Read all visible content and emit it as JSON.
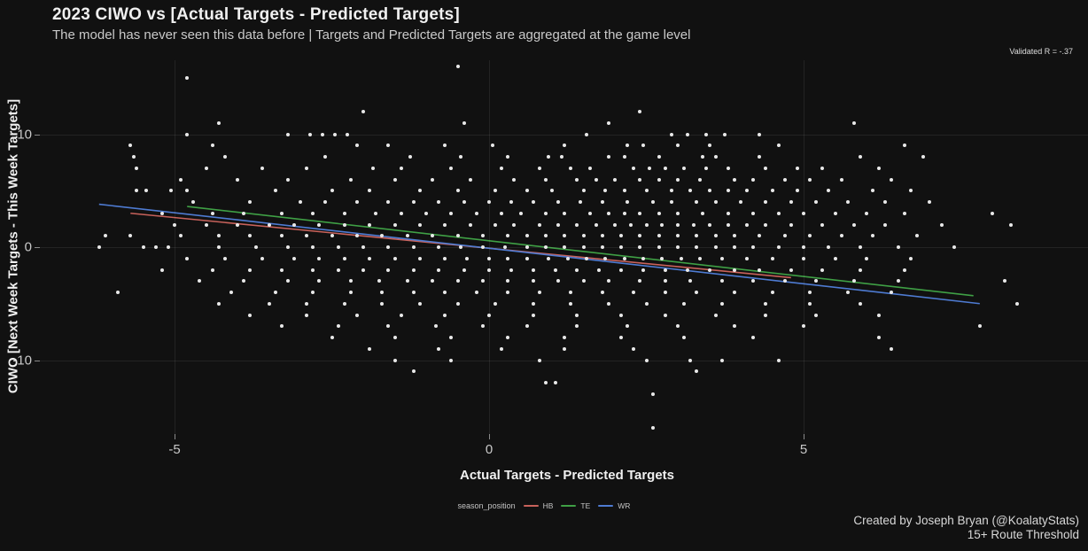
{
  "chart_data": {
    "type": "scatter",
    "title": "2023 CIWO vs [Actual Targets - Predicted Targets]",
    "subtitle": "The model has never seen this data before | Targets and Predicted Targets are aggregated at the game level",
    "annotation": "Validated R = -.37",
    "xlabel": "Actual Targets - Predicted Targets",
    "ylabel": "CIWO [Next Week Targets - This Week Targets]",
    "xticks": [
      -5,
      0,
      5
    ],
    "yticks": [
      10,
      0,
      -10
    ],
    "xlim": [
      -7.1,
      9.5
    ],
    "ylim": [
      -16.6,
      16.6
    ],
    "grid": true,
    "legend_position": "bottom",
    "background_color": "#111111",
    "point_color": "#e9e9e9",
    "rows": [
      {
        "y": 16,
        "x": [
          -0.5
        ]
      },
      {
        "y": 15,
        "x": [
          -4.8
        ]
      },
      {
        "y": 12,
        "x": [
          -2.0,
          2.4
        ]
      },
      {
        "y": 11,
        "x": [
          -4.3,
          -0.4,
          1.9,
          5.8
        ]
      },
      {
        "y": 10,
        "x": [
          -4.8,
          -3.2,
          -2.85,
          -2.65,
          -2.45,
          -2.25,
          1.55,
          2.9,
          3.15,
          3.45,
          3.75,
          4.3
        ]
      },
      {
        "y": 9,
        "x": [
          -5.7,
          -4.4,
          -2.1,
          -1.6,
          -0.7,
          0.05,
          1.2,
          2.2,
          2.45,
          3.0,
          3.5,
          4.6,
          6.6
        ]
      },
      {
        "y": 8,
        "x": [
          -5.65,
          -4.2,
          -2.6,
          -1.25,
          -0.45,
          0.3,
          0.95,
          1.15,
          1.9,
          2.15,
          2.7,
          3.4,
          3.6,
          4.3,
          5.9,
          6.9
        ]
      },
      {
        "y": 7,
        "x": [
          -5.6,
          -4.5,
          -3.6,
          -2.9,
          -1.85,
          -1.4,
          -0.6,
          0.2,
          0.8,
          1.3,
          1.6,
          2.3,
          2.55,
          2.8,
          3.1,
          3.45,
          3.8,
          4.4,
          4.9,
          5.3,
          6.2
        ]
      },
      {
        "y": 6,
        "x": [
          -4.9,
          -4.0,
          -3.2,
          -2.2,
          -1.5,
          -0.9,
          -0.3,
          0.4,
          0.9,
          1.4,
          1.7,
          2.0,
          2.4,
          2.7,
          3.0,
          3.35,
          3.9,
          4.2,
          4.7,
          5.1,
          5.6,
          6.4
        ]
      },
      {
        "y": 5,
        "x": [
          -5.6,
          -5.45,
          -5.05,
          -4.8,
          -3.4,
          -2.5,
          -1.9,
          -1.1,
          -0.5,
          0.1,
          0.6,
          1.0,
          1.5,
          1.85,
          2.15,
          2.5,
          2.9,
          3.2,
          3.5,
          3.8,
          4.1,
          4.5,
          4.9,
          5.4,
          6.1,
          6.7
        ]
      },
      {
        "y": 4,
        "x": [
          -4.7,
          -3.8,
          -3.0,
          -2.6,
          -2.1,
          -1.6,
          -1.2,
          -0.8,
          -0.4,
          0.0,
          0.35,
          0.7,
          1.1,
          1.45,
          1.8,
          2.2,
          2.6,
          2.9,
          3.3,
          3.6,
          4.0,
          4.4,
          4.8,
          5.2,
          5.7,
          6.3,
          7.0
        ]
      },
      {
        "y": 3,
        "x": [
          -5.2,
          -4.4,
          -3.9,
          -3.3,
          -2.8,
          -2.3,
          -1.8,
          -1.4,
          -1.0,
          -0.6,
          -0.2,
          0.2,
          0.5,
          0.9,
          1.2,
          1.6,
          1.9,
          2.15,
          2.4,
          2.7,
          3.0,
          3.4,
          3.8,
          4.2,
          4.6,
          5.0,
          5.5,
          6.0,
          6.6,
          8.0
        ]
      },
      {
        "y": 2,
        "x": [
          -5.0,
          -4.5,
          -4.0,
          -3.5,
          -3.1,
          -2.7,
          -2.3,
          -1.9,
          -1.5,
          -1.1,
          -0.7,
          -0.3,
          0.1,
          0.4,
          0.8,
          1.1,
          1.4,
          1.7,
          2.0,
          2.25,
          2.5,
          2.75,
          3.0,
          3.25,
          3.5,
          3.8,
          4.1,
          4.4,
          4.8,
          5.3,
          5.8,
          6.3,
          7.2,
          8.3
        ]
      },
      {
        "y": 1,
        "x": [
          -6.1,
          -5.7,
          -4.9,
          -4.3,
          -3.8,
          -3.3,
          -2.9,
          -2.5,
          -2.1,
          -1.7,
          -1.3,
          -0.9,
          -0.5,
          -0.1,
          0.3,
          0.6,
          0.9,
          1.2,
          1.5,
          1.8,
          2.1,
          2.4,
          2.7,
          3.0,
          3.3,
          3.6,
          3.9,
          4.3,
          4.7,
          5.1,
          5.6,
          6.1,
          6.8
        ]
      },
      {
        "y": 0,
        "x": [
          -6.2,
          -5.5,
          -5.3,
          -5.1,
          -4.3,
          -3.7,
          -3.2,
          -2.8,
          -2.4,
          -2.0,
          -1.6,
          -1.2,
          -0.8,
          -0.45,
          -0.1,
          0.25,
          0.6,
          0.9,
          1.2,
          1.5,
          1.8,
          2.1,
          2.4,
          2.7,
          3.0,
          3.3,
          3.6,
          3.9,
          4.2,
          4.6,
          5.0,
          5.4,
          5.9,
          6.5,
          7.4
        ]
      },
      {
        "y": -1,
        "x": [
          -4.8,
          -4.2,
          -3.6,
          -3.1,
          -2.7,
          -2.3,
          -1.9,
          -1.5,
          -1.1,
          -0.7,
          -0.35,
          0.0,
          0.3,
          0.6,
          0.95,
          1.25,
          1.55,
          1.85,
          2.15,
          2.45,
          2.75,
          3.05,
          3.35,
          3.7,
          4.1,
          4.5,
          5.0,
          5.5,
          6.0,
          6.7
        ]
      },
      {
        "y": -2,
        "x": [
          -5.2,
          -4.4,
          -3.8,
          -3.3,
          -2.8,
          -2.4,
          -2.0,
          -1.6,
          -1.2,
          -0.8,
          -0.4,
          0.0,
          0.35,
          0.7,
          1.05,
          1.4,
          1.75,
          2.1,
          2.45,
          2.8,
          3.15,
          3.5,
          3.9,
          4.3,
          4.8,
          5.3,
          5.9,
          6.6
        ]
      },
      {
        "y": -3,
        "x": [
          -4.6,
          -3.9,
          -3.2,
          -2.7,
          -2.2,
          -1.75,
          -1.3,
          -0.9,
          -0.5,
          -0.1,
          0.3,
          0.7,
          1.1,
          1.5,
          1.9,
          2.4,
          2.8,
          3.2,
          3.7,
          4.2,
          4.7,
          5.2,
          5.8,
          6.5,
          8.2
        ]
      },
      {
        "y": -4,
        "x": [
          -5.9,
          -4.1,
          -3.4,
          -2.8,
          -2.2,
          -1.7,
          -1.2,
          -0.7,
          -0.2,
          0.3,
          0.8,
          1.3,
          1.8,
          2.3,
          2.8,
          3.3,
          3.9,
          4.5,
          5.1,
          5.7,
          6.4
        ]
      },
      {
        "y": -5,
        "x": [
          -4.3,
          -3.5,
          -2.9,
          -2.3,
          -1.7,
          -1.1,
          -0.5,
          0.1,
          0.7,
          1.3,
          1.9,
          2.5,
          3.1,
          3.7,
          4.4,
          5.1,
          5.9,
          8.4
        ]
      },
      {
        "y": -6,
        "x": [
          -3.8,
          -2.9,
          -2.1,
          -1.4,
          -0.7,
          0.0,
          0.7,
          1.4,
          2.1,
          2.8,
          3.6,
          4.4,
          5.2,
          6.2
        ]
      },
      {
        "y": -7,
        "x": [
          -3.3,
          -2.4,
          -1.6,
          -0.85,
          -0.1,
          0.6,
          1.4,
          2.2,
          3.0,
          3.9,
          5.0,
          7.8
        ]
      },
      {
        "y": -8,
        "x": [
          -2.5,
          -1.5,
          -0.6,
          0.3,
          1.2,
          2.1,
          3.1,
          4.2,
          6.2
        ]
      },
      {
        "y": -9,
        "x": [
          -1.9,
          -0.8,
          0.2,
          1.2,
          2.3,
          6.4
        ]
      },
      {
        "y": -10,
        "x": [
          -1.5,
          -0.6,
          0.8,
          2.5,
          3.2,
          3.7,
          4.6
        ]
      },
      {
        "y": -11,
        "x": [
          -1.2,
          3.3
        ]
      },
      {
        "y": -12,
        "x": [
          0.9,
          1.05
        ]
      },
      {
        "y": -13,
        "x": [
          2.6
        ]
      },
      {
        "y": -16,
        "x": [
          2.6
        ]
      }
    ],
    "trend_lines": [
      {
        "name": "HB",
        "color": "#c8625b",
        "x1": -5.7,
        "y1": 3.0,
        "x2": 4.8,
        "y2": -2.7
      },
      {
        "name": "TE",
        "color": "#3fa045",
        "x1": -4.8,
        "y1": 3.6,
        "x2": 7.7,
        "y2": -4.3
      },
      {
        "name": "WR",
        "color": "#4e7bd2",
        "x1": -6.2,
        "y1": 3.8,
        "x2": 7.8,
        "y2": -5.0
      }
    ],
    "legend": {
      "title": "season_position",
      "entries": [
        {
          "label": "HB",
          "color": "#c8625b"
        },
        {
          "label": "TE",
          "color": "#3fa045"
        },
        {
          "label": "WR",
          "color": "#4e7bd2"
        }
      ]
    }
  },
  "footer": {
    "credit": "Created by Joseph Bryan (@KoalatyStats)",
    "threshold": "15+ Route Threshold"
  }
}
